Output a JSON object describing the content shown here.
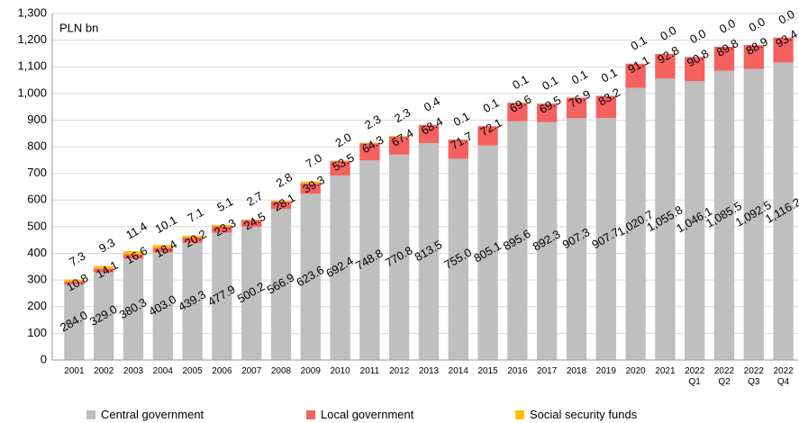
{
  "chart_data": {
    "type": "stacked_bar",
    "annotation": "PLN bn",
    "categories": [
      "2001",
      "2002",
      "2003",
      "2004",
      "2005",
      "2006",
      "2007",
      "2008",
      "2009",
      "2010",
      "2011",
      "2012",
      "2013",
      "2014",
      "2015",
      "2016",
      "2017",
      "2018",
      "2019",
      "2020",
      "2021",
      "2022 Q1",
      "2022 Q2",
      "2022 Q3",
      "2022 Q4"
    ],
    "series": [
      {
        "name": "Central government",
        "color": "#bfbfbf",
        "values": [
          284.0,
          329.0,
          380.3,
          403.0,
          439.3,
          477.9,
          500.2,
          566.9,
          623.6,
          692.4,
          748.8,
          770.8,
          813.5,
          755.0,
          805.1,
          895.6,
          892.3,
          907.3,
          907.7,
          1020.7,
          1055.8,
          1046.1,
          1085.5,
          1092.5,
          1116.2
        ],
        "value_labels": [
          "284.0",
          "329.0",
          "380.3",
          "403.0",
          "439.3",
          "477.9",
          "500.2",
          "566.9",
          "623.6",
          "692.4",
          "748.8",
          "770.8",
          "813.5",
          "755.0",
          "805.1",
          "895.6",
          "892.3",
          "907.3",
          "907.7",
          "1,020.7",
          "1,055.8",
          "1,046.1",
          "1,085.5",
          "1,092.5",
          "1,116.2"
        ]
      },
      {
        "name": "Local government",
        "color": "#f4615f",
        "values": [
          10.8,
          14.1,
          16.6,
          18.4,
          20.2,
          23.3,
          24.5,
          28.1,
          39.3,
          53.5,
          64.3,
          67.4,
          68.4,
          71.7,
          72.1,
          69.6,
          69.5,
          76.9,
          83.2,
          91.1,
          92.8,
          90.8,
          89.8,
          88.9,
          93.4
        ],
        "value_labels": [
          "10.8",
          "14.1",
          "16.6",
          "18.4",
          "20.2",
          "23.3",
          "24.5",
          "28.1",
          "39.3",
          "53.5",
          "64.3",
          "67.4",
          "68.4",
          "71.7",
          "72.1",
          "69.6",
          "69.5",
          "76.9",
          "83.2",
          "91.1",
          "92.8",
          "90.8",
          "89.8",
          "88.9",
          "93.4"
        ]
      },
      {
        "name": "Social security funds",
        "color": "#ffc000",
        "values": [
          7.3,
          9.3,
          11.4,
          10.1,
          7.1,
          5.1,
          2.7,
          2.8,
          7.0,
          2.0,
          2.3,
          2.3,
          0.4,
          0.1,
          0.1,
          0.1,
          0.1,
          0.1,
          0.1,
          0.1,
          0.0,
          0.0,
          0.0,
          0.0,
          0.0
        ],
        "value_labels": [
          "7.3",
          "9.3",
          "11.4",
          "10.1",
          "7.1",
          "5.1",
          "2.7",
          "2.8",
          "7.0",
          "2.0",
          "2.3",
          "2.3",
          "0.4",
          "0.1",
          "0.1",
          "0.1",
          "0.1",
          "0.1",
          "0.1",
          "0.1",
          "0.0",
          "0.0",
          "0.0",
          "0.0",
          "0.0"
        ]
      }
    ],
    "ylim": [
      0,
      1300
    ],
    "yticks": [
      0,
      100,
      200,
      300,
      400,
      500,
      600,
      700,
      800,
      900,
      {
        "value": 1000,
        "label": "1,000"
      },
      {
        "value": 1100,
        "label": "1,100"
      },
      {
        "value": 1200,
        "label": "1,200"
      },
      {
        "value": 1300,
        "label": "1,300"
      }
    ],
    "grid": true,
    "legend": "bottom"
  }
}
